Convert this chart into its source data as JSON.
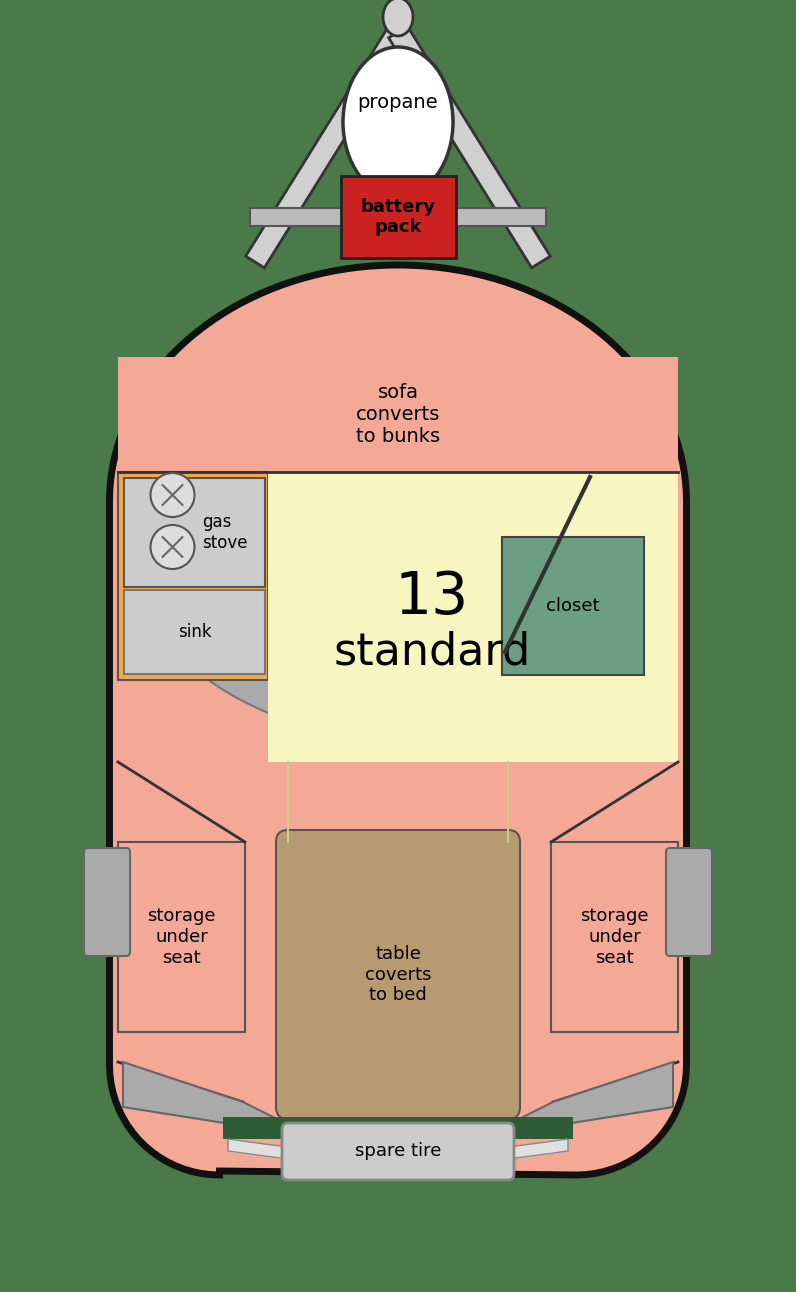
{
  "bg_color": "#4a7a4a",
  "trailer_fill": "#f4a896",
  "trailer_stroke": "#111111",
  "sofa_fill": "#f4a896",
  "kitchen_fill": "#f5a84a",
  "stove_fill": "#cccccc",
  "sink_fill": "#cccccc",
  "center_fill": "#f8f5c0",
  "closet_fill": "#6b9e82",
  "table_fill": "#b89a72",
  "storage_fill": "#f4a896",
  "bumper_fill": "#aaaaaa",
  "bumper_white": "#e8e8e8",
  "hitch_fill": "#cccccc",
  "propane_fill": "#ffffff",
  "battery_fill": "#cc2222",
  "door_color": "#333333",
  "label_sofa": "sofa\nconverts\nto bunks",
  "label_gas": "gas\nstove",
  "label_sink": "sink",
  "label_closet": "closet",
  "label_table": "table\ncoverts\nto bed",
  "label_storage_l": "storage\nunder\nseat",
  "label_storage_r": "storage\nunder\nseat",
  "label_propane": "propane",
  "label_battery": "battery\npack",
  "label_spare": "spare tire",
  "title_line1": "13",
  "title_line2": "standard"
}
